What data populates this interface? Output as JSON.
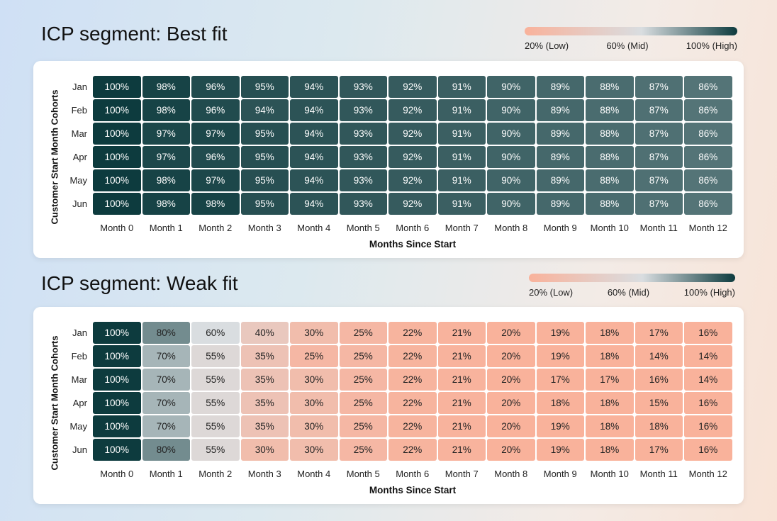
{
  "chart_data": [
    {
      "type": "heatmap",
      "title": "ICP segment: Best fit",
      "xlabel": "Months Since Start",
      "ylabel": "Customer Start Month Cohorts",
      "x": [
        "Month 0",
        "Month 1",
        "Month 2",
        "Month 3",
        "Month 4",
        "Month 5",
        "Month 6",
        "Month 7",
        "Month 8",
        "Month 9",
        "Month 10",
        "Month 11",
        "Month 12"
      ],
      "y": [
        "Jan",
        "Feb",
        "Mar",
        "Apr",
        "May",
        "Jun"
      ],
      "values": [
        [
          100,
          98,
          96,
          95,
          94,
          93,
          92,
          91,
          90,
          89,
          88,
          87,
          86
        ],
        [
          100,
          98,
          96,
          94,
          94,
          93,
          92,
          91,
          90,
          89,
          88,
          87,
          86
        ],
        [
          100,
          97,
          97,
          95,
          94,
          93,
          92,
          91,
          90,
          89,
          88,
          87,
          86
        ],
        [
          100,
          97,
          96,
          95,
          94,
          93,
          92,
          91,
          90,
          89,
          88,
          87,
          86
        ],
        [
          100,
          98,
          97,
          95,
          94,
          93,
          92,
          91,
          90,
          89,
          88,
          87,
          86
        ],
        [
          100,
          98,
          98,
          95,
          94,
          93,
          92,
          91,
          90,
          89,
          88,
          87,
          86
        ]
      ],
      "unit": "%",
      "colorscale": {
        "low": "#f9b29b",
        "mid": "#d9dde0",
        "high": "#0d3b3e",
        "labels": [
          "20% (Low)",
          "60% (Mid)",
          "100% (High)"
        ]
      }
    },
    {
      "type": "heatmap",
      "title": "ICP segment: Weak fit",
      "xlabel": "Months Since Start",
      "ylabel": "Customer Start Month Cohorts",
      "x": [
        "Month 0",
        "Month 1",
        "Month 2",
        "Month 3",
        "Month 4",
        "Month 5",
        "Month 6",
        "Month 7",
        "Month 8",
        "Month 9",
        "Month 10",
        "Month 11",
        "Month 12"
      ],
      "y": [
        "Jan",
        "Feb",
        "Mar",
        "Apr",
        "May",
        "Jun"
      ],
      "values": [
        [
          100,
          80,
          60,
          40,
          30,
          25,
          22,
          21,
          20,
          19,
          18,
          17,
          16
        ],
        [
          100,
          70,
          55,
          35,
          25,
          25,
          22,
          21,
          20,
          19,
          18,
          14,
          14
        ],
        [
          100,
          70,
          55,
          35,
          30,
          25,
          22,
          21,
          20,
          17,
          17,
          16,
          14
        ],
        [
          100,
          70,
          55,
          35,
          30,
          25,
          22,
          21,
          20,
          18,
          18,
          15,
          16
        ],
        [
          100,
          70,
          55,
          35,
          30,
          25,
          22,
          21,
          20,
          19,
          18,
          18,
          16
        ],
        [
          100,
          80,
          55,
          30,
          30,
          25,
          22,
          21,
          20,
          19,
          18,
          17,
          16
        ]
      ],
      "unit": "%",
      "colorscale": {
        "low": "#f9b29b",
        "mid": "#d9dde0",
        "high": "#0d3b3e",
        "labels": [
          "20% (Low)",
          "60% (Mid)",
          "100% (High)"
        ]
      }
    }
  ]
}
